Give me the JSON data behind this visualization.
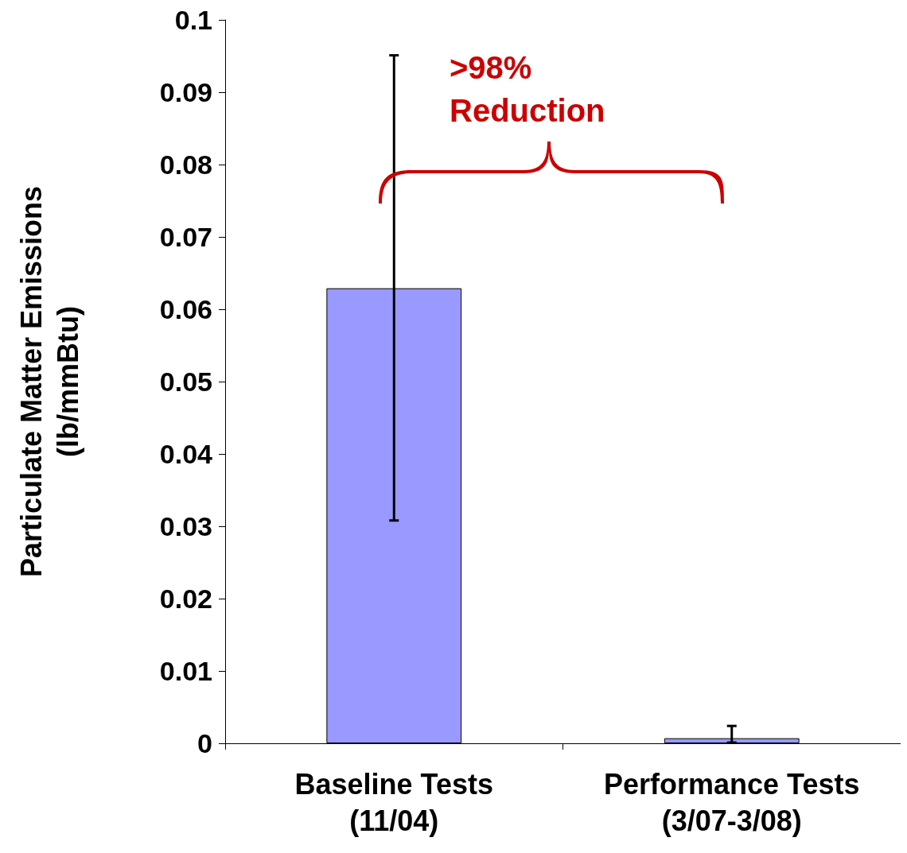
{
  "chart_data": {
    "type": "bar",
    "ylabel": "Particulate Matter Emissions\n(lb/mmBtu)",
    "categories": [
      "Baseline Tests\n(11/04)",
      "Performance Tests\n(3/07-3/08)"
    ],
    "values": [
      0.0629,
      0.0007
    ],
    "errors": [
      [
        0.0308,
        0.0951
      ],
      [
        0.0001,
        0.0024
      ]
    ],
    "color": "#9999ff",
    "ylim": [
      0,
      0.1
    ],
    "yticks": [
      0,
      0.01,
      0.02,
      0.03,
      0.04,
      0.05,
      0.06,
      0.07,
      0.08,
      0.09,
      0.1
    ],
    "annotations": [
      ">98%\nReduction"
    ],
    "grid": false
  }
}
